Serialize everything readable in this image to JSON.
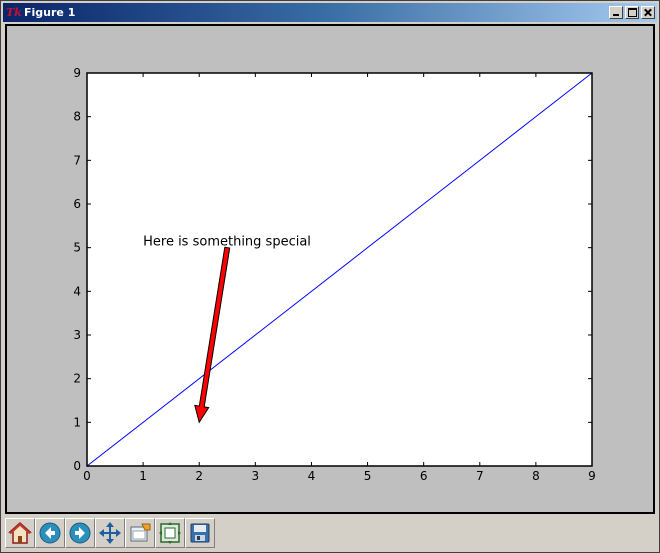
{
  "window": {
    "title": "Figure 1"
  },
  "toolbar": {
    "buttons": [
      {
        "name": "home",
        "icon": "home-icon"
      },
      {
        "name": "back",
        "icon": "back-arrow-icon"
      },
      {
        "name": "forward",
        "icon": "forward-arrow-icon"
      },
      {
        "name": "pan",
        "icon": "pan-move-icon"
      },
      {
        "name": "zoom",
        "icon": "zoom-rect-icon"
      },
      {
        "name": "subplots",
        "icon": "subplots-config-icon"
      },
      {
        "name": "save",
        "icon": "save-disk-icon"
      }
    ]
  },
  "chart_data": {
    "type": "line",
    "title": "",
    "xlabel": "",
    "ylabel": "",
    "xlim": [
      0,
      9
    ],
    "ylim": [
      0,
      9
    ],
    "xticks": [
      "0",
      "1",
      "2",
      "3",
      "4",
      "5",
      "6",
      "7",
      "8",
      "9"
    ],
    "yticks": [
      "0",
      "1",
      "2",
      "3",
      "4",
      "5",
      "6",
      "7",
      "8",
      "9"
    ],
    "series": [
      {
        "x": [
          0,
          1,
          2,
          3,
          4,
          5,
          6,
          7,
          8,
          9
        ],
        "y": [
          0,
          1,
          2,
          3,
          4,
          5,
          6,
          7,
          8,
          9
        ],
        "color": "#0000ff"
      }
    ],
    "annotation": {
      "text": "Here is something special",
      "text_xy": [
        1,
        5
      ],
      "arrow_start": [
        2.5,
        5
      ],
      "arrow_end": [
        2,
        1
      ],
      "arrow_color": "#ff0000"
    },
    "grid": false
  }
}
